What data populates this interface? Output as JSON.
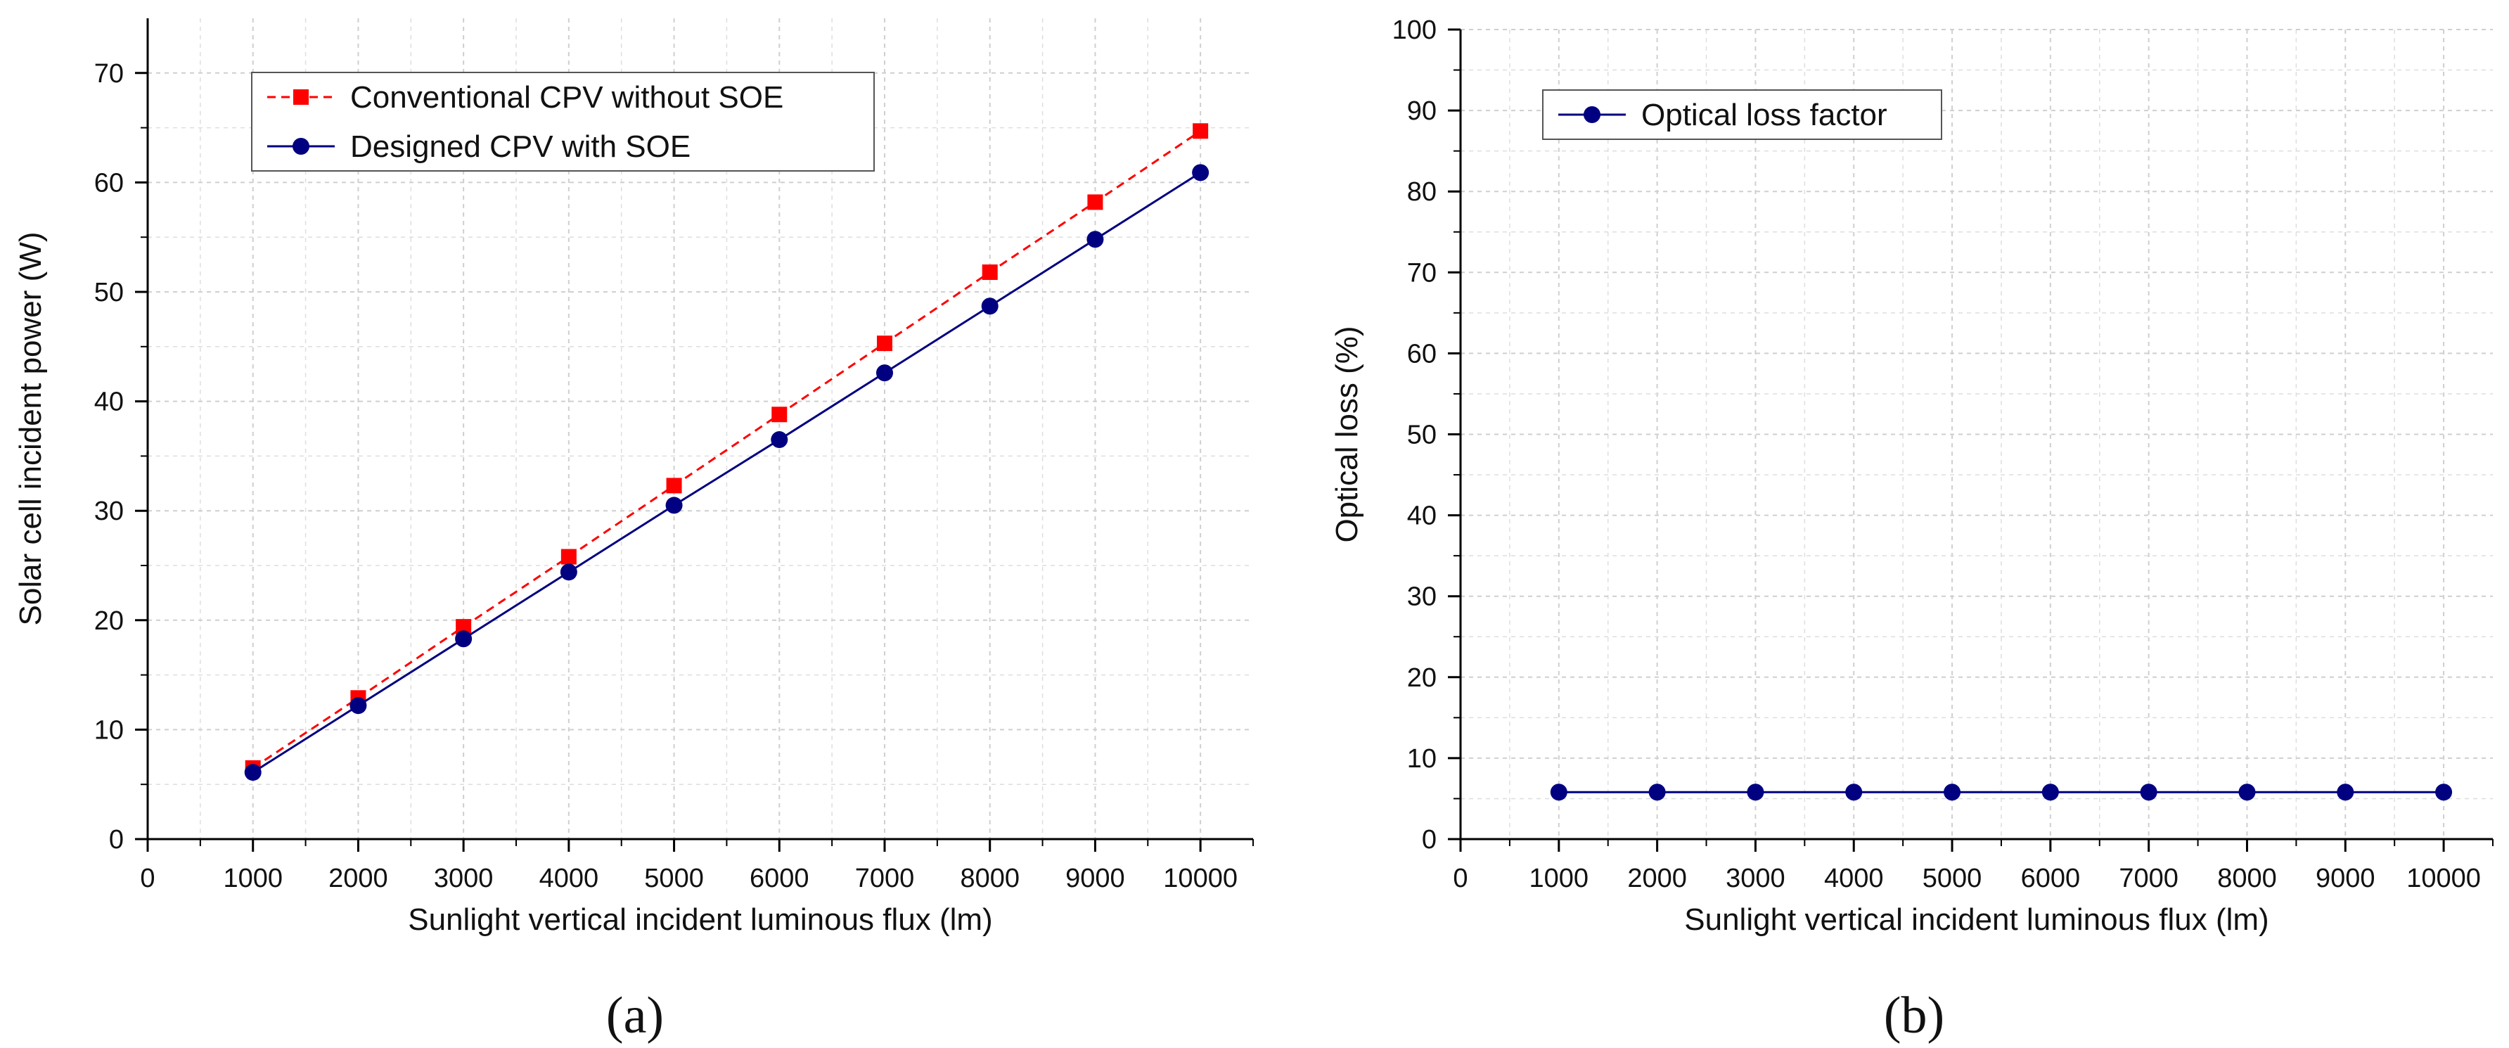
{
  "chart_data": [
    {
      "type": "line",
      "panel_label": "(a)",
      "xlabel": "Sunlight vertical incident luminous flux (lm)",
      "ylabel": "Solar cell incident power (W)",
      "xlim": [
        0,
        10500
      ],
      "ylim": [
        0,
        75
      ],
      "xticks": [
        0,
        1000,
        2000,
        3000,
        4000,
        5000,
        6000,
        7000,
        8000,
        9000,
        10000
      ],
      "yticks": [
        0,
        10,
        20,
        30,
        40,
        50,
        60,
        70
      ],
      "grid": true,
      "legend_position": "top-left",
      "x": [
        1000,
        2000,
        3000,
        4000,
        5000,
        6000,
        7000,
        8000,
        9000,
        10000
      ],
      "series": [
        {
          "name": "Conventional CPV without SOE",
          "values": [
            6.5,
            12.9,
            19.4,
            25.8,
            32.3,
            38.8,
            45.3,
            51.8,
            58.2,
            64.7
          ],
          "color": "#ff0000",
          "marker": "square",
          "line": "dashed"
        },
        {
          "name": "Designed CPV with SOE",
          "values": [
            6.1,
            12.2,
            18.3,
            24.4,
            30.5,
            36.5,
            42.6,
            48.7,
            54.8,
            60.9
          ],
          "color": "#000080",
          "marker": "circle",
          "line": "solid"
        }
      ]
    },
    {
      "type": "line",
      "panel_label": "(b)",
      "xlabel": "Sunlight vertical incident luminous flux (lm)",
      "ylabel": "Optical loss (%)",
      "xlim": [
        0,
        10500
      ],
      "ylim": [
        0,
        100
      ],
      "xticks": [
        0,
        1000,
        2000,
        3000,
        4000,
        5000,
        6000,
        7000,
        8000,
        9000,
        10000
      ],
      "yticks": [
        0,
        10,
        20,
        30,
        40,
        50,
        60,
        70,
        80,
        90,
        100
      ],
      "grid": true,
      "legend_position": "top-left",
      "x": [
        1000,
        2000,
        3000,
        4000,
        5000,
        6000,
        7000,
        8000,
        9000,
        10000
      ],
      "series": [
        {
          "name": "Optical loss factor",
          "values": [
            5.8,
            5.8,
            5.8,
            5.8,
            5.8,
            5.8,
            5.8,
            5.8,
            5.8,
            5.8
          ],
          "color": "#000080",
          "marker": "circle",
          "line": "solid"
        }
      ]
    }
  ]
}
